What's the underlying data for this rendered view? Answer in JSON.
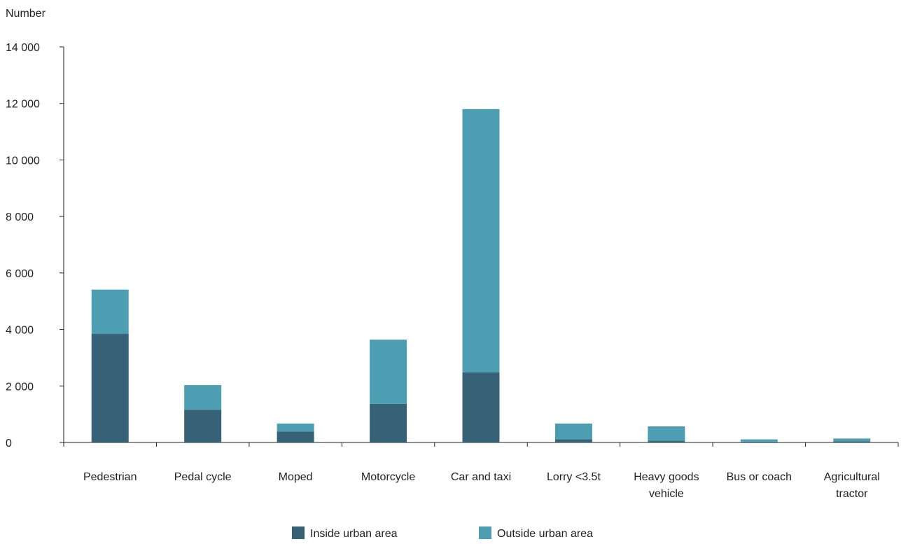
{
  "chart_data": {
    "type": "bar",
    "stacked": true,
    "ylabel": "Number",
    "xlabel": "",
    "ylim": [
      0,
      14000
    ],
    "yticks": [
      0,
      2000,
      4000,
      6000,
      8000,
      10000,
      12000,
      14000
    ],
    "ytick_labels": [
      "0",
      "2 000",
      "4 000",
      "6 000",
      "8 000",
      "10 000",
      "12 000",
      "14 000"
    ],
    "categories": [
      [
        "Pedestrian"
      ],
      [
        "Pedal cycle"
      ],
      [
        "Moped"
      ],
      [
        "Motorcycle"
      ],
      [
        "Car and taxi"
      ],
      [
        "Lorry <3.5t"
      ],
      [
        "Heavy goods",
        "vehicle"
      ],
      [
        "Bus or coach"
      ],
      [
        "Agricultural",
        "tractor"
      ]
    ],
    "series": [
      {
        "name": "Inside urban area",
        "color": "#376176",
        "values": [
          3850,
          1160,
          390,
          1370,
          2480,
          110,
          60,
          30,
          40
        ]
      },
      {
        "name": "Outside urban area",
        "color": "#4d9db3",
        "values": [
          1560,
          870,
          280,
          2270,
          9320,
          560,
          510,
          80,
          100
        ]
      }
    ],
    "grid": false,
    "legend_position": "bottom"
  }
}
